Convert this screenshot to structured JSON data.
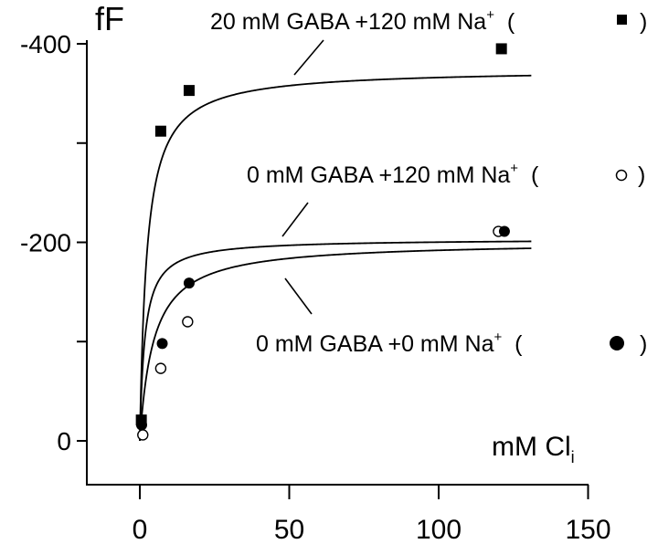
{
  "chart_data": {
    "type": "scatter",
    "title": "",
    "ylabel": "fF",
    "xlabel": "mM Cl",
    "xlabel_subscript": "i",
    "xlim": [
      -20,
      150
    ],
    "ylim": [
      0,
      -400
    ],
    "x_ticks": [
      0,
      50,
      100,
      150
    ],
    "x_tick_labels": [
      "0",
      "50",
      "100",
      "150"
    ],
    "y_ticks": [
      0,
      -100,
      -200,
      -300,
      -400
    ],
    "y_tick_labels": [
      "0",
      "-200",
      "-400"
    ],
    "y_labeled_ticks": [
      0,
      -200,
      -400
    ],
    "grid": false,
    "series": [
      {
        "name": "20 mM GABA +120 mM Na",
        "superscript": "+",
        "marker": "filled-square",
        "x": [
          0.5,
          7,
          16.5,
          121
        ],
        "y": [
          -21,
          -312,
          -353,
          -395
        ],
        "fit": {
          "model": "hyperbolic",
          "vmax": -374.6,
          "k": 2.34,
          "x_range": [
            0,
            131
          ]
        }
      },
      {
        "name": "0 mM GABA +120 mM Na",
        "superscript": "+",
        "marker": "open-circle",
        "x": [
          1,
          7,
          16,
          120
        ],
        "y": [
          -6,
          -73,
          -120,
          -211
        ],
        "fit": {
          "model": "hyperbolic",
          "vmax": -203.5,
          "k": 1.65,
          "x_range": [
            0,
            131
          ]
        }
      },
      {
        "name": "0 mM GABA +0 mM Na",
        "superscript": "+",
        "marker": "filled-circle",
        "x": [
          0.6,
          7.5,
          16.5,
          122
        ],
        "y": [
          -16,
          -98,
          -159,
          -211
        ],
        "fit": {
          "model": "hyperbolic",
          "vmax": -200.8,
          "k": 4.61,
          "x_range": [
            0,
            131
          ]
        }
      }
    ]
  }
}
